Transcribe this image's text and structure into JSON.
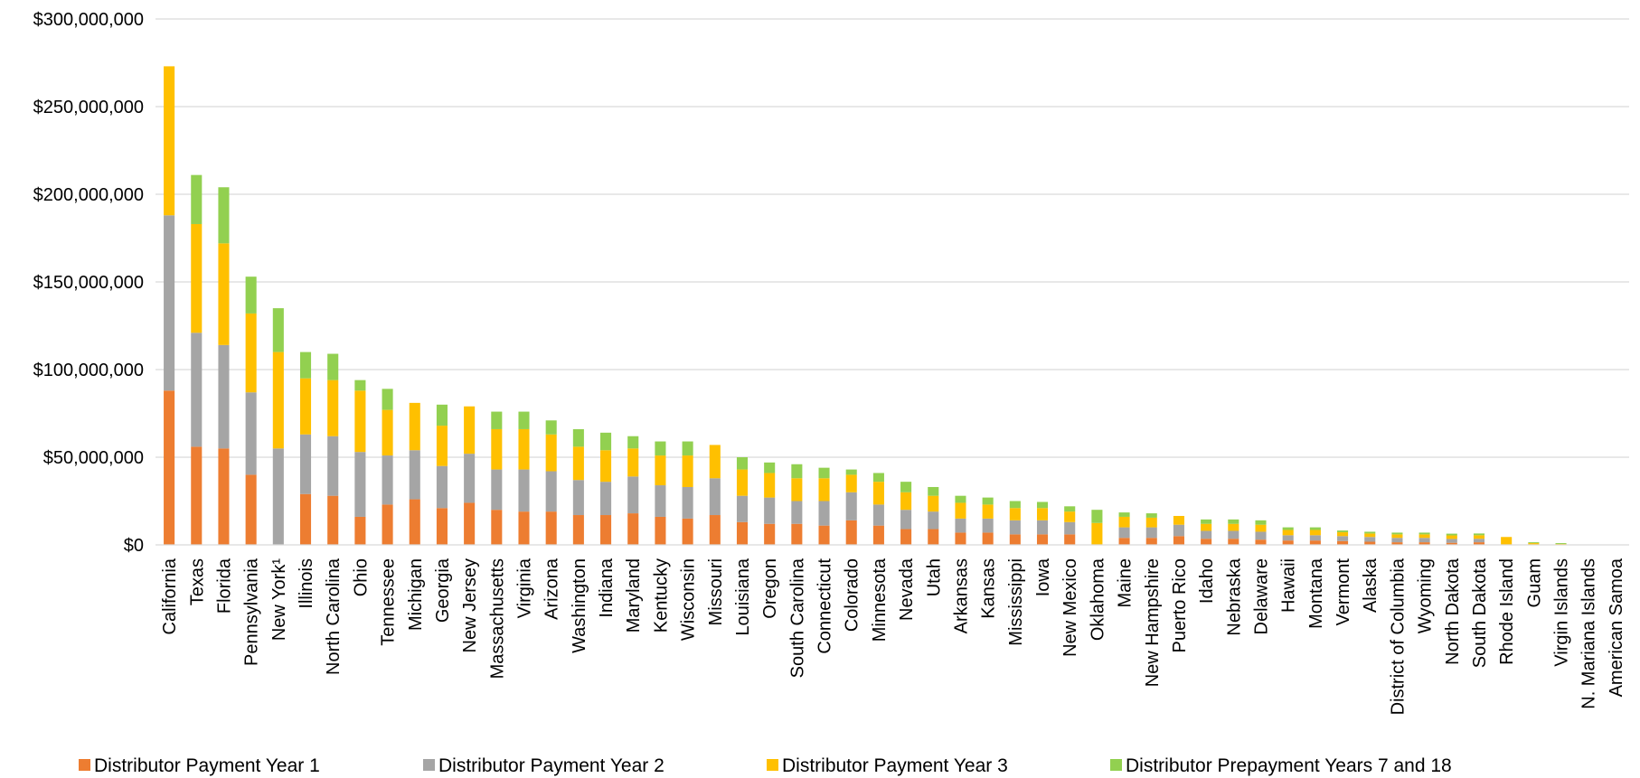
{
  "chart_data": {
    "type": "bar",
    "stacked": true,
    "title": "",
    "xlabel": "",
    "ylabel": "",
    "ylim": [
      0,
      300000000
    ],
    "y_ticks": [
      {
        "value": 0,
        "label": "$0"
      },
      {
        "value": 50000000,
        "label": "$50,000,000"
      },
      {
        "value": 100000000,
        "label": "$100,000,000"
      },
      {
        "value": 150000000,
        "label": "$150,000,000"
      },
      {
        "value": 200000000,
        "label": "$200,000,000"
      },
      {
        "value": 250000000,
        "label": "$250,000,000"
      },
      {
        "value": 300000000,
        "label": "$300,000,000"
      }
    ],
    "grid": true,
    "legend_position": "bottom",
    "categories": [
      "California",
      "Texas",
      "Florida",
      "Pennsylvania",
      "New York¹",
      "Illinois",
      "North Carolina",
      "Ohio",
      "Tennessee",
      "Michigan",
      "Georgia",
      "New Jersey",
      "Massachusetts",
      "Virginia",
      "Arizona",
      "Washington",
      "Indiana",
      "Maryland",
      "Kentucky",
      "Wisconsin",
      "Missouri",
      "Louisiana",
      "Oregon",
      "South Carolina",
      "Connecticut",
      "Colorado",
      "Minnesota",
      "Nevada",
      "Utah",
      "Arkansas",
      "Kansas",
      "Mississippi",
      "Iowa",
      "New Mexico",
      "Oklahoma",
      "Maine",
      "New Hampshire",
      "Puerto Rico",
      "Idaho",
      "Nebraska",
      "Delaware",
      "Hawaii",
      "Montana",
      "Vermont",
      "Alaska",
      "District of Columbia",
      "Wyoming",
      "North Dakota",
      "South Dakota",
      "Rhode Island",
      "Guam",
      "Virgin Islands",
      "N. Mariana Islands",
      "American Samoa"
    ],
    "series": [
      {
        "name": "Distributor Payment Year 1",
        "color": "#ED7D31",
        "values": [
          88000000,
          56000000,
          55000000,
          40000000,
          0,
          29000000,
          28000000,
          16000000,
          23000000,
          26000000,
          21000000,
          24000000,
          20000000,
          19000000,
          19000000,
          17000000,
          17000000,
          18000000,
          16000000,
          15000000,
          17000000,
          13000000,
          12000000,
          12000000,
          11000000,
          14000000,
          11000000,
          9000000,
          9000000,
          7000000,
          7000000,
          6000000,
          6000000,
          6000000,
          0,
          4000000,
          4000000,
          5000000,
          3500000,
          3500000,
          3000000,
          2500000,
          2500000,
          2200000,
          1800000,
          1500000,
          1500000,
          1200000,
          1500000,
          0,
          0,
          0,
          0,
          0
        ]
      },
      {
        "name": "Distributor Payment Year 2",
        "color": "#A5A5A5",
        "values": [
          100000000,
          65000000,
          59000000,
          47000000,
          55000000,
          34000000,
          34000000,
          37000000,
          28000000,
          28000000,
          24000000,
          28000000,
          23000000,
          24000000,
          23000000,
          20000000,
          19000000,
          21000000,
          18000000,
          18000000,
          21000000,
          15000000,
          15000000,
          13000000,
          14000000,
          16000000,
          12000000,
          11000000,
          10000000,
          8000000,
          8000000,
          8000000,
          8000000,
          7000000,
          0,
          6000000,
          6000000,
          6500000,
          4500000,
          4500000,
          4500000,
          3000000,
          3000000,
          2800000,
          2700000,
          2500000,
          2500000,
          2200000,
          2000000,
          0,
          0,
          0,
          0,
          0
        ]
      },
      {
        "name": "Distributor Payment Year 3",
        "color": "#FFC000",
        "values": [
          85000000,
          62000000,
          58000000,
          45000000,
          55000000,
          32000000,
          32000000,
          35000000,
          26000000,
          27000000,
          23000000,
          27000000,
          23000000,
          23000000,
          21000000,
          19000000,
          18000000,
          16000000,
          17000000,
          18000000,
          19000000,
          15000000,
          14000000,
          13000000,
          13000000,
          10000000,
          13000000,
          10000000,
          9000000,
          9000000,
          8000000,
          7000000,
          7000000,
          6000000,
          12500000,
          6000000,
          5500000,
          5000000,
          4000000,
          4000000,
          4000000,
          3000000,
          3000000,
          2200000,
          2000000,
          2000000,
          2000000,
          2000000,
          2000000,
          4500000,
          1000000,
          500000,
          0,
          0
        ]
      },
      {
        "name": "Distributor Prepayment Years 7 and 18",
        "color": "#92D050",
        "values": [
          0,
          28000000,
          32000000,
          21000000,
          25000000,
          15000000,
          15000000,
          6000000,
          12000000,
          0,
          12000000,
          0,
          10000000,
          10000000,
          8000000,
          10000000,
          10000000,
          7000000,
          8000000,
          8000000,
          0,
          7000000,
          6000000,
          8000000,
          6000000,
          3000000,
          5000000,
          6000000,
          5000000,
          4000000,
          4000000,
          4000000,
          3500000,
          3000000,
          7500000,
          2500000,
          2500000,
          0,
          2500000,
          2500000,
          2500000,
          1500000,
          1500000,
          1000000,
          1000000,
          1000000,
          1000000,
          1000000,
          1000000,
          0,
          500000,
          500000,
          0,
          0
        ]
      }
    ]
  }
}
